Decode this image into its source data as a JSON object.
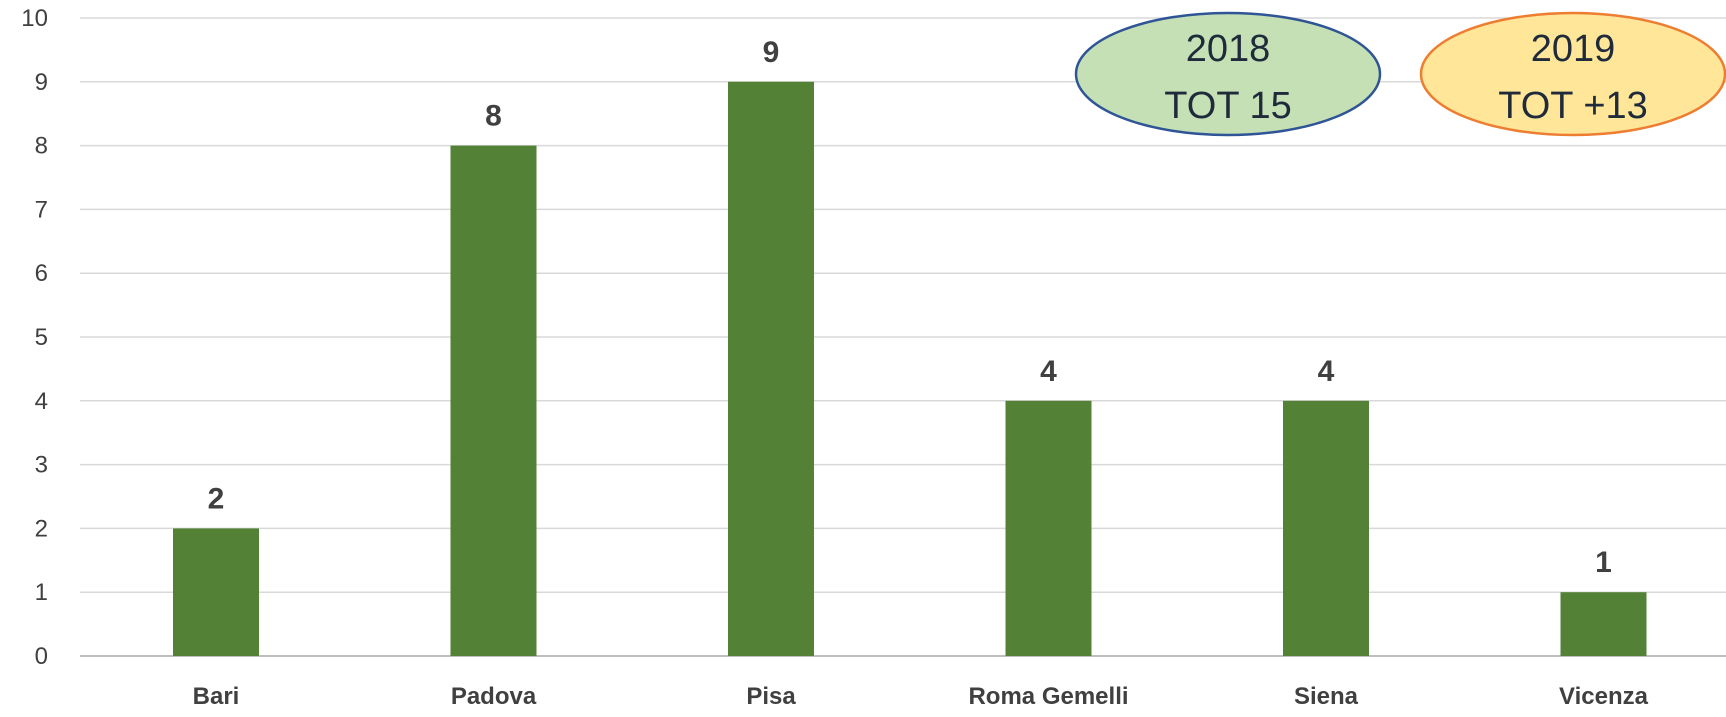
{
  "chart_data": {
    "type": "bar",
    "categories": [
      "Bari",
      "Padova",
      "Pisa",
      "Roma Gemelli",
      "Siena",
      "Vicenza"
    ],
    "values": [
      2,
      8,
      9,
      4,
      4,
      1
    ],
    "ylim": [
      0,
      10
    ],
    "yticks": [
      0,
      1,
      2,
      3,
      4,
      5,
      6,
      7,
      8,
      9,
      10
    ],
    "grid": true,
    "data_labels": true,
    "bar_color": "#538135",
    "grid_color": "#d9d9d9",
    "axis_color": "#bfbfbf",
    "label_color": "#404040"
  },
  "badges": [
    {
      "line1": "2018",
      "line2": "TOT 15",
      "fill": "#c5e0b4",
      "stroke": "#2f5597"
    },
    {
      "line1": "2019",
      "line2": "TOT +13",
      "fill": "#ffe699",
      "stroke": "#ed7d31"
    }
  ]
}
